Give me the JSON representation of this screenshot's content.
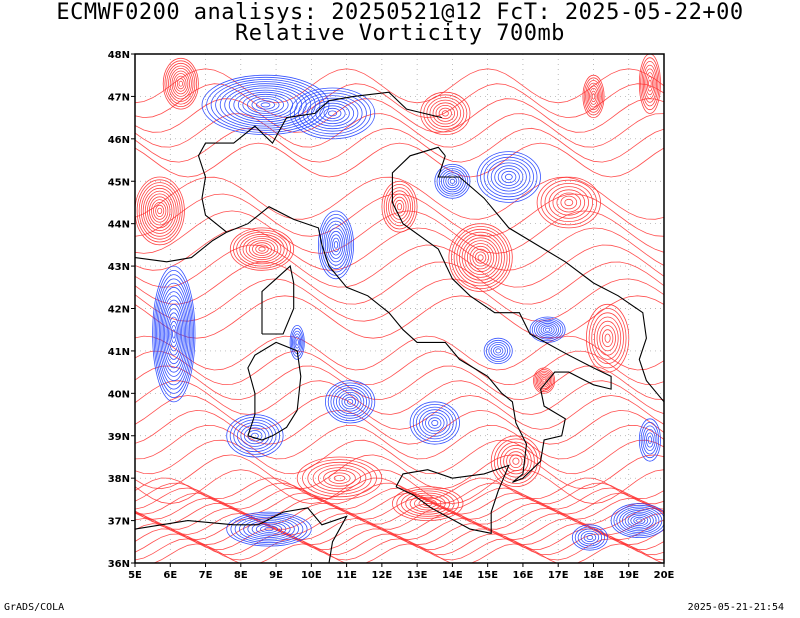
{
  "header": {
    "title_line1": "ECMWF0200 analisys: 20250521@12 FcT: 2025-05-22+00",
    "title_line2": "Relative Vorticity 700mb"
  },
  "footer": {
    "left": "GrADS/COLA",
    "right": "2025-05-21-21:54"
  },
  "map": {
    "lon_range": [
      5,
      20
    ],
    "lat_range": [
      36,
      48
    ],
    "lon_ticks": [
      "5E",
      "6E",
      "7E",
      "8E",
      "9E",
      "10E",
      "11E",
      "12E",
      "13E",
      "14E",
      "15E",
      "16E",
      "17E",
      "18E",
      "19E",
      "20E"
    ],
    "lat_ticks": [
      "36N",
      "37N",
      "38N",
      "39N",
      "40N",
      "41N",
      "42N",
      "43N",
      "44N",
      "45N",
      "46N",
      "47N",
      "48N"
    ],
    "colors": {
      "positive": "#ff3030",
      "negative": "#2040ff",
      "coast": "#000000",
      "grid": "#a0a0a0"
    }
  }
}
